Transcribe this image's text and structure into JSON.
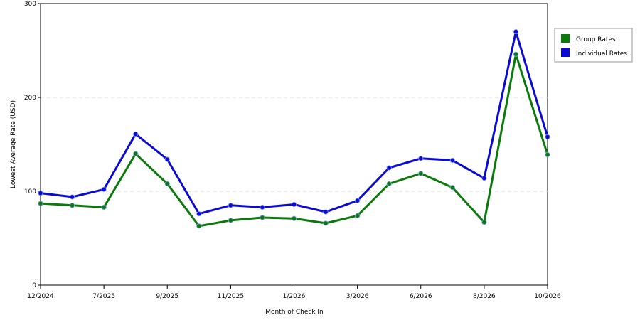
{
  "chart_data": {
    "type": "line",
    "xlabel": "Month of Check In",
    "ylabel": "Lowest Average Rate (USD)",
    "ylim": [
      0,
      300
    ],
    "yticks": [
      "0",
      "100",
      "200",
      "300"
    ],
    "categories": [
      "12/2024",
      "",
      "7/2025",
      "",
      "9/2025",
      "",
      "11/2025",
      "",
      "1/2026",
      "",
      "3/2026",
      "",
      "6/2026",
      "",
      "8/2026",
      "",
      "10/2026"
    ],
    "grid": "horizontal dashed",
    "legend": "right",
    "series": [
      {
        "name": "Group Rates",
        "color": "#0a7a0a",
        "values": [
          87,
          85,
          83,
          140,
          108,
          63,
          69,
          72,
          71,
          66,
          74,
          108,
          119,
          104,
          67,
          246,
          139
        ]
      },
      {
        "name": "Individual Rates",
        "color": "#0a0ad2",
        "values": [
          98,
          94,
          102,
          161,
          134,
          76,
          85,
          83,
          86,
          78,
          90,
          125,
          135,
          133,
          114,
          270,
          158
        ]
      }
    ]
  }
}
